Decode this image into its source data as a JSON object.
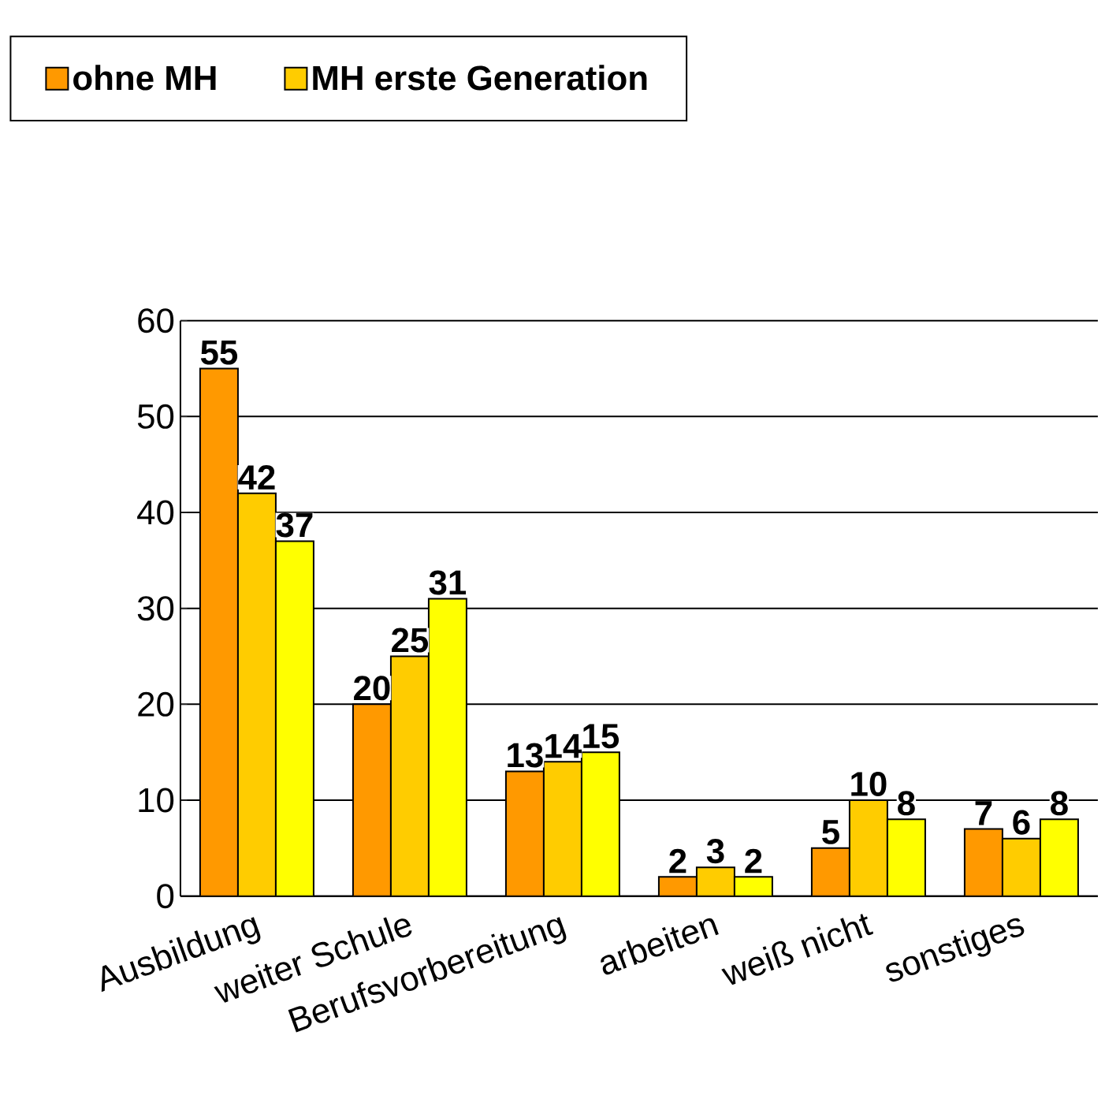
{
  "chart_data": {
    "type": "bar",
    "categories": [
      "Ausbildung",
      "weiter Schule",
      "Berufsvorbereitung",
      "arbeiten",
      "weiß nicht",
      "sonstiges"
    ],
    "series": [
      {
        "name": "ohne MH",
        "color": "#ff9900",
        "values": [
          55,
          20,
          13,
          2,
          5,
          7
        ]
      },
      {
        "name": "MH erste Generation",
        "color": "#ffcc00",
        "values": [
          42,
          25,
          14,
          3,
          10,
          6
        ]
      },
      {
        "color": "#ffff00",
        "values": [
          37,
          31,
          15,
          2,
          8,
          8
        ]
      }
    ],
    "ylim": [
      0,
      60
    ],
    "yticks": [
      0,
      10,
      20,
      30,
      40,
      50,
      60
    ],
    "grid": "y",
    "legend": "top",
    "data_labels": true
  }
}
